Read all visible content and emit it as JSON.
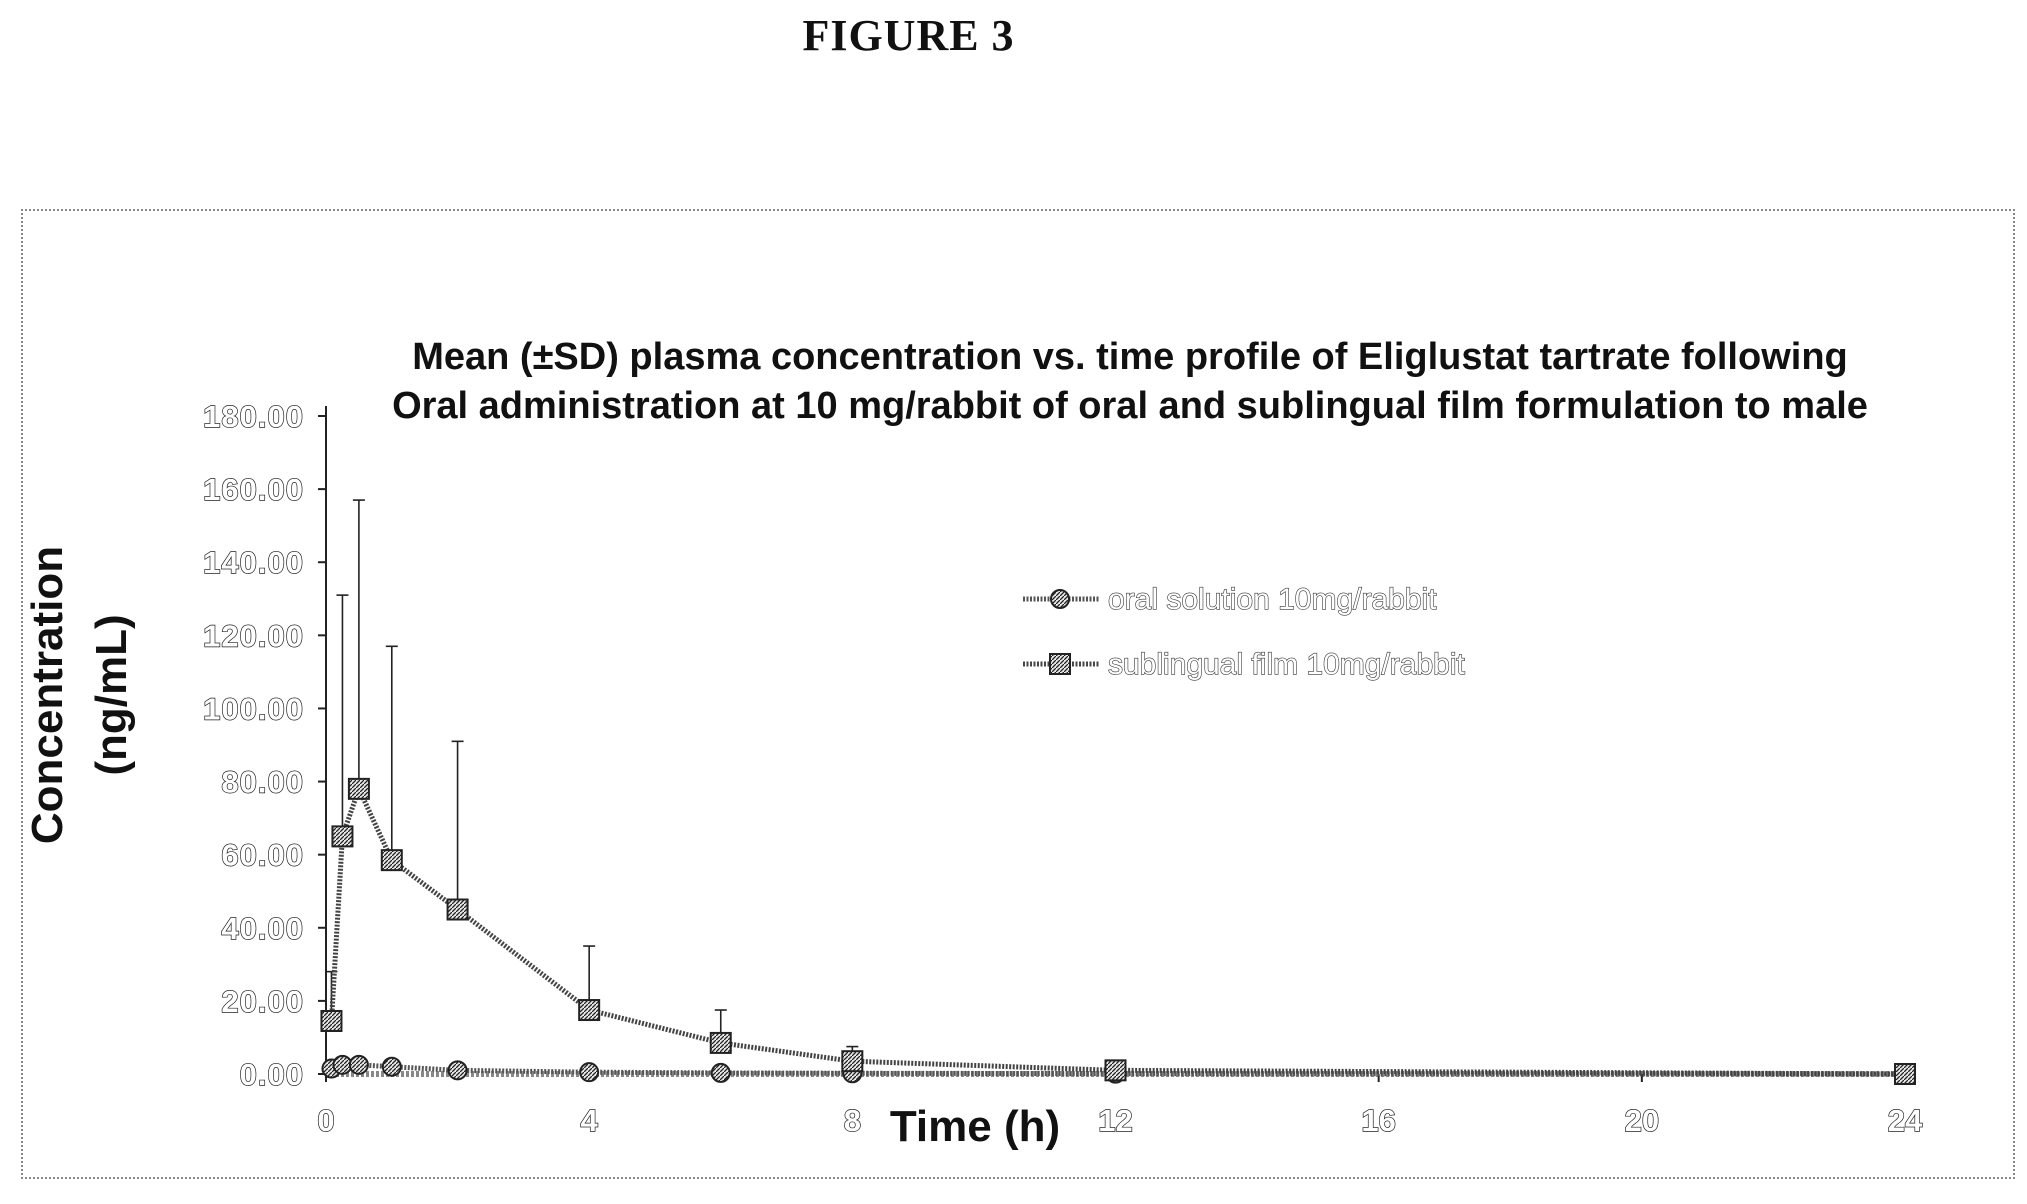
{
  "figure_label": "FIGURE 3",
  "chart_data": {
    "type": "line",
    "title_lines": [
      "Mean (±SD) plasma concentration vs. time profile of Eliglustat tartrate following",
      "Oral administration at 10 mg/rabbit of oral and sublingual film formulation to male"
    ],
    "xlabel": "Time (h)",
    "ylabel_lines": [
      "Concentration",
      "(ng/mL)"
    ],
    "xlim": [
      0,
      24
    ],
    "ylim": [
      0,
      180
    ],
    "x_ticks": [
      "0",
      "4",
      "8",
      "12",
      "16",
      "20",
      "24"
    ],
    "y_ticks": [
      "0.00",
      "20.00",
      "40.00",
      "60.00",
      "80.00",
      "100.00",
      "120.00",
      "140.00",
      "160.00",
      "180.00"
    ],
    "legend_position": "right-center",
    "grid": false,
    "series": [
      {
        "name": "oral solution 10mg/rabbit",
        "marker": "circle",
        "color": "#555555",
        "x": [
          0.083,
          0.25,
          0.5,
          1,
          2,
          4,
          6,
          8,
          12,
          24
        ],
        "y": [
          1.5,
          2.5,
          2.5,
          2.0,
          1.0,
          0.5,
          0.3,
          0.2,
          0.1,
          0.0
        ]
      },
      {
        "name": "sublingual film 10mg/rabbit",
        "marker": "square",
        "color": "#444444",
        "x": [
          0.083,
          0.25,
          0.5,
          1,
          2,
          4,
          6,
          8,
          12,
          24
        ],
        "y": [
          14.5,
          65.0,
          78.0,
          58.5,
          45.0,
          17.5,
          8.5,
          3.5,
          1.0,
          0.0
        ],
        "sd_upper": [
          28.0,
          131.0,
          157.0,
          117.0,
          91.0,
          35.0,
          17.5,
          7.5,
          2.0,
          0.0
        ]
      }
    ]
  }
}
